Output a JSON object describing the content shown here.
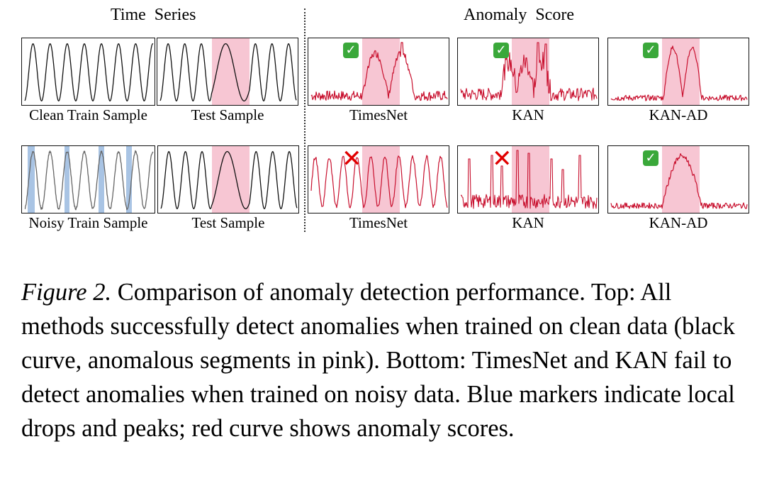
{
  "headers": {
    "time_series": "Time  Series",
    "anomaly_score": "Anomaly  Score"
  },
  "rows": [
    {
      "train_label": "Clean Train Sample",
      "test_label": "Test Sample",
      "methods": [
        {
          "name": "TimesNet",
          "status": "check-icon"
        },
        {
          "name": "KAN",
          "status": "check-icon"
        },
        {
          "name": "KAN-AD",
          "status": "check-icon"
        }
      ]
    },
    {
      "train_label": "Noisy Train Sample",
      "test_label": "Test Sample",
      "methods": [
        {
          "name": "TimesNet",
          "status": "cross-icon"
        },
        {
          "name": "KAN",
          "status": "cross-icon"
        },
        {
          "name": "KAN-AD",
          "status": "check-icon"
        }
      ]
    }
  ],
  "caption": {
    "figure_label": "Figure 2.",
    "text": " Comparison of anomaly detection performance. Top: All methods successfully detect anomalies when trained on clean data (black curve, anomalous segments in pink). Bottom: TimesNet and KAN fail to detect anomalies when trained on noisy data. Blue markers indicate local drops and peaks; red curve shows anomaly scores."
  },
  "colors": {
    "anomaly_region": "#f7c6d3",
    "noise_marker": "#a9c4e4",
    "score_curve": "#c8102e",
    "signal": "#111111",
    "check": "#3aa83a",
    "cross": "#e00000"
  }
}
